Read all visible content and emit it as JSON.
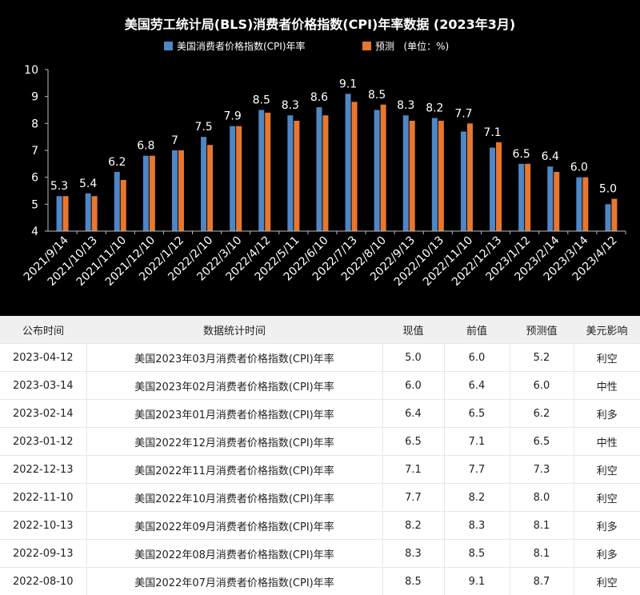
{
  "chart_data": {
    "type": "bar",
    "title": "美国劳工统计局(BLS)消费者价格指数(CPI)年率数据 (2023年3月)",
    "legend_position": "top-center",
    "grid": false,
    "categories": [
      "2021/9/14",
      "2021/10/13",
      "2021/11/10",
      "2021/12/10",
      "2022/1/12",
      "2022/2/10",
      "2022/3/10",
      "2022/4/12",
      "2022/5/11",
      "2022/6/10",
      "2022/7/13",
      "2022/8/10",
      "2022/9/13",
      "2022/10/13",
      "2022/11/10",
      "2022/12/13",
      "2023/1/12",
      "2023/2/14",
      "2023/3/14",
      "2023/4/12"
    ],
    "series": [
      {
        "name": "美国消费者价格指数(CPI)年率",
        "color": "#4f86c6",
        "values": [
          5.3,
          5.4,
          6.2,
          6.8,
          7.0,
          7.5,
          7.9,
          8.5,
          8.3,
          8.6,
          9.1,
          8.5,
          8.3,
          8.2,
          7.7,
          7.1,
          6.5,
          6.4,
          6.0,
          5.0
        ]
      },
      {
        "name": "预测   (单位：%)",
        "color": "#e8772e",
        "values": [
          5.3,
          5.3,
          5.9,
          6.8,
          7.0,
          7.2,
          7.9,
          8.4,
          8.1,
          8.3,
          8.8,
          8.7,
          8.1,
          8.1,
          8.0,
          7.3,
          6.5,
          6.2,
          6.0,
          5.2
        ]
      }
    ],
    "data_labels": [
      "5.3",
      "5.4",
      "6.2",
      "6.8",
      "7",
      "7.5",
      "7.9",
      "8.5",
      "8.3",
      "8.6",
      "9.1",
      "8.5",
      "8.3",
      "8.2",
      "7.7",
      "7.1",
      "6.5",
      "6.4",
      "6.0",
      "5.0"
    ],
    "ylim": [
      4,
      10
    ],
    "yticks": [
      "4",
      "5",
      "6",
      "7",
      "8",
      "9",
      "10"
    ]
  },
  "table": {
    "headers": [
      "公布时间",
      "数据统计时间",
      "现值",
      "前值",
      "预测值",
      "美元影响"
    ],
    "rows": [
      [
        "2023-04-12",
        "美国2023年03月消费者价格指数(CPI)年率",
        "5.0",
        "6.0",
        "5.2",
        "利空"
      ],
      [
        "2023-03-14",
        "美国2023年02月消费者价格指数(CPI)年率",
        "6.0",
        "6.4",
        "6.0",
        "中性"
      ],
      [
        "2023-02-14",
        "美国2023年01月消费者价格指数(CPI)年率",
        "6.4",
        "6.5",
        "6.2",
        "利多"
      ],
      [
        "2023-01-12",
        "美国2022年12月消费者价格指数(CPI)年率",
        "6.5",
        "7.1",
        "6.5",
        "中性"
      ],
      [
        "2022-12-13",
        "美国2022年11月消费者价格指数(CPI)年率",
        "7.1",
        "7.7",
        "7.3",
        "利空"
      ],
      [
        "2022-11-10",
        "美国2022年10月消费者价格指数(CPI)年率",
        "7.7",
        "8.2",
        "8.0",
        "利空"
      ],
      [
        "2022-10-13",
        "美国2022年09月消费者价格指数(CPI)年率",
        "8.2",
        "8.3",
        "8.1",
        "利多"
      ],
      [
        "2022-09-13",
        "美国2022年08月消费者价格指数(CPI)年率",
        "8.3",
        "8.5",
        "8.1",
        "利多"
      ],
      [
        "2022-08-10",
        "美国2022年07月消费者价格指数(CPI)年率",
        "8.5",
        "9.1",
        "8.7",
        "利空"
      ]
    ]
  }
}
